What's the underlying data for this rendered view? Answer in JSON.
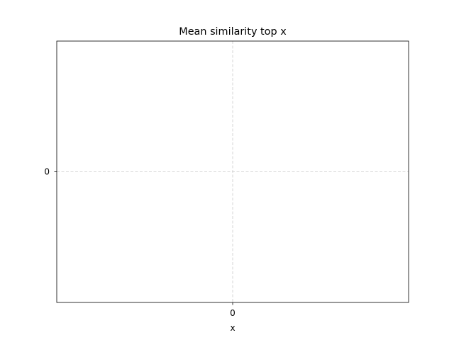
{
  "chart_data": {
    "type": "line",
    "title": "Mean similarity top x",
    "xlabel": "x",
    "ylabel": "",
    "x_ticks": [
      "0"
    ],
    "y_ticks": [
      "0"
    ],
    "x": [],
    "series": [],
    "xlim": [
      -1,
      1
    ],
    "ylim": [
      -1,
      1
    ],
    "grid": true,
    "legend": "none"
  }
}
